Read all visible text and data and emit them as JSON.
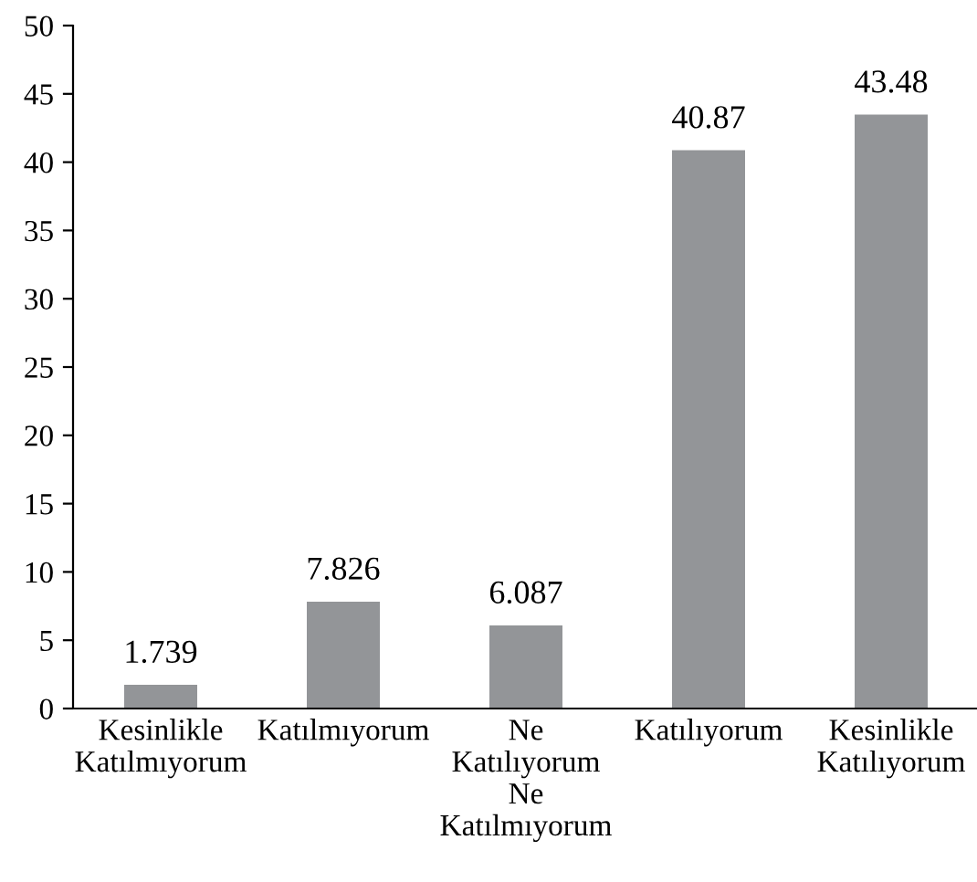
{
  "chart_data": {
    "type": "bar",
    "categories": [
      "Kesinlikle\nKatılmıyorum",
      "Katılmıyorum",
      "Ne\nKatılıyorum\nNe\nKatılmıyorum",
      "Katılıyorum",
      "Kesinlikle\nKatılıyorum"
    ],
    "values": [
      1.739,
      7.826,
      6.087,
      40.87,
      43.48
    ],
    "color": "#939598",
    "ylim": [
      0,
      50
    ],
    "yticks": [
      0,
      5,
      10,
      15,
      20,
      25,
      30,
      35,
      40,
      45,
      50
    ],
    "data_labels": true,
    "grid": false,
    "legend": false
  }
}
